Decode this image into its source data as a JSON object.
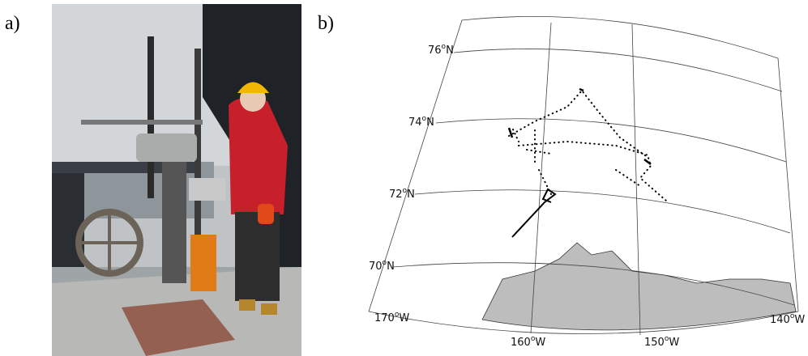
{
  "panels": [
    {
      "label": "a)"
    },
    {
      "label": "b)"
    }
  ],
  "map": {
    "latitude_labels": [
      {
        "number": "76",
        "degree": "o",
        "hemisphere": "N"
      },
      {
        "number": "74",
        "degree": "o",
        "hemisphere": "N"
      },
      {
        "number": "72",
        "degree": "o",
        "hemisphere": "N"
      },
      {
        "number": "70",
        "degree": "o",
        "hemisphere": "N"
      }
    ],
    "longitude_labels": [
      {
        "number": "170",
        "degree": "o",
        "hemisphere": "W"
      },
      {
        "number": "160",
        "degree": "o",
        "hemisphere": "W"
      },
      {
        "number": "150",
        "degree": "o",
        "hemisphere": "W"
      },
      {
        "number": "140",
        "degree": "o",
        "hemisphere": "W"
      }
    ]
  }
}
